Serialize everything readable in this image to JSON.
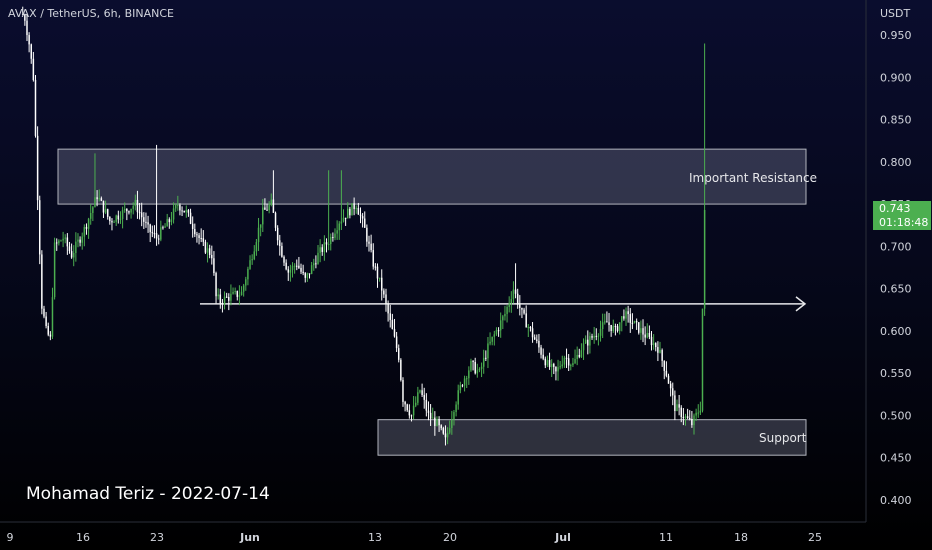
{
  "header": {
    "symbol": "AVAX / TetherUS, 6h, BINANCE"
  },
  "author_note": "Mohamad Teriz - 2022-07-14",
  "price_tag": {
    "price": "0.743",
    "countdown": "01:18:48"
  },
  "colors": {
    "up": "#4caf50",
    "down": "#ffffff",
    "zone_fill": "#8c8fa8",
    "zone_border": "#b2b5be",
    "arrow": "#e6e7ea",
    "price_tag_bg": "#4caf50"
  },
  "chart_data": {
    "type": "candlestick",
    "y_unit": "USDT",
    "y_ticks": [
      "0.950",
      "0.900",
      "0.850",
      "0.800",
      "0.750",
      "0.700",
      "0.650",
      "0.600",
      "0.550",
      "0.500",
      "0.450",
      "0.400"
    ],
    "x_ticks": [
      "9",
      "16",
      "23",
      "Jun",
      "13",
      "20",
      "Jul",
      "11",
      "18",
      "25"
    ],
    "ylim": [
      0.38,
      0.975
    ],
    "zones": [
      {
        "label": "Important Resistance",
        "top": 0.815,
        "bottom": 0.75
      },
      {
        "label": "Support",
        "top": 0.495,
        "bottom": 0.453
      }
    ],
    "arrow_level": 0.632,
    "last_price": 0.743,
    "close_path": [
      [
        0,
        1.0
      ],
      [
        4,
        0.94
      ],
      [
        6,
        0.9
      ],
      [
        8,
        0.76
      ],
      [
        10,
        0.63
      ],
      [
        12,
        0.6
      ],
      [
        14,
        0.59
      ],
      [
        16,
        0.7
      ],
      [
        20,
        0.71
      ],
      [
        24,
        0.69
      ],
      [
        30,
        0.72
      ],
      [
        36,
        0.76
      ],
      [
        42,
        0.73
      ],
      [
        48,
        0.74
      ],
      [
        54,
        0.75
      ],
      [
        60,
        0.72
      ],
      [
        64,
        0.71
      ],
      [
        70,
        0.73
      ],
      [
        74,
        0.75
      ],
      [
        78,
        0.74
      ],
      [
        82,
        0.72
      ],
      [
        86,
        0.7
      ],
      [
        90,
        0.69
      ],
      [
        92,
        0.64
      ],
      [
        94,
        0.635
      ],
      [
        98,
        0.64
      ],
      [
        104,
        0.645
      ],
      [
        110,
        0.7
      ],
      [
        114,
        0.74
      ],
      [
        118,
        0.75
      ],
      [
        122,
        0.7
      ],
      [
        126,
        0.67
      ],
      [
        130,
        0.68
      ],
      [
        134,
        0.66
      ],
      [
        140,
        0.69
      ],
      [
        146,
        0.71
      ],
      [
        150,
        0.73
      ],
      [
        154,
        0.74
      ],
      [
        158,
        0.75
      ],
      [
        162,
        0.72
      ],
      [
        166,
        0.68
      ],
      [
        170,
        0.65
      ],
      [
        174,
        0.61
      ],
      [
        178,
        0.57
      ],
      [
        180,
        0.52
      ],
      [
        184,
        0.5
      ],
      [
        188,
        0.53
      ],
      [
        192,
        0.5
      ],
      [
        196,
        0.49
      ],
      [
        200,
        0.47
      ],
      [
        204,
        0.51
      ],
      [
        208,
        0.54
      ],
      [
        212,
        0.56
      ],
      [
        216,
        0.55
      ],
      [
        220,
        0.58
      ],
      [
        224,
        0.6
      ],
      [
        228,
        0.62
      ],
      [
        232,
        0.65
      ],
      [
        236,
        0.62
      ],
      [
        240,
        0.6
      ],
      [
        244,
        0.58
      ],
      [
        248,
        0.56
      ],
      [
        252,
        0.55
      ],
      [
        256,
        0.57
      ],
      [
        260,
        0.56
      ],
      [
        264,
        0.58
      ],
      [
        268,
        0.59
      ],
      [
        272,
        0.6
      ],
      [
        276,
        0.61
      ],
      [
        280,
        0.6
      ],
      [
        284,
        0.62
      ],
      [
        288,
        0.61
      ],
      [
        292,
        0.6
      ],
      [
        296,
        0.59
      ],
      [
        300,
        0.58
      ],
      [
        304,
        0.55
      ],
      [
        308,
        0.51
      ],
      [
        312,
        0.5
      ],
      [
        316,
        0.49
      ],
      [
        320,
        0.51
      ],
      [
        322,
        0.743
      ]
    ],
    "spikes": [
      [
        34,
        0.81
      ],
      [
        63,
        0.82
      ],
      [
        118,
        0.79
      ],
      [
        144,
        0.79
      ],
      [
        150,
        0.79
      ],
      [
        232,
        0.68
      ],
      [
        321,
        0.94
      ]
    ]
  }
}
